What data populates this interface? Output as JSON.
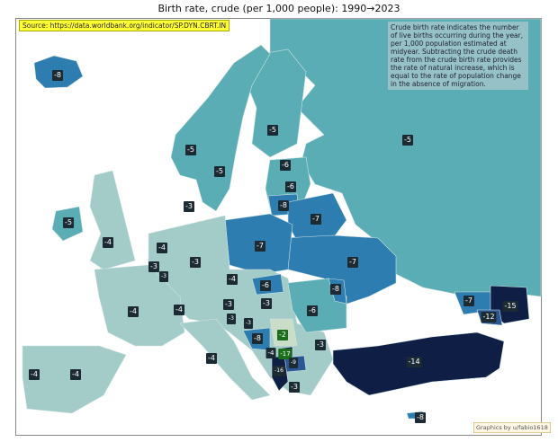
{
  "title": "Birth rate, crude (per 1,000 people):  1990→2023",
  "source": "Source: https://data.worldbank.org/indicator/SP.DYN.CBRT.IN",
  "note": "Crude birth rate indicates the number of live births occurring during the year, per 1,000 population estimated at midyear. Subtracting the crude death rate from the crude birth rate provides the rate of natural increase, which is equal to the rate of population change in the absence of migration.",
  "credit": "Graphics by u/fabio1618",
  "colors": {
    "light": "#a3cbc8",
    "teal": "#5aacb5",
    "blue": "#2e7db1",
    "darkblue": "#2a5894",
    "navy": "#0f1e45",
    "palegreen": "#c9ddc9"
  },
  "countries": {
    "iceland": "-8",
    "norway": "-5",
    "sweden": "-5",
    "finland": "-5",
    "russia": "-5",
    "estonia": "-6",
    "latvia": "-6",
    "lithuania": "-8",
    "belarus": "-7",
    "ireland": "-5",
    "uk": "-4",
    "denmark": "-3",
    "netherlands": "-4",
    "belgium": "-3",
    "luxembourg": "-3",
    "germany": "-3",
    "poland": "-7",
    "ukraine": "-7",
    "czechia": "-4",
    "slovakia": "-6",
    "moldova": "-8",
    "france": "-4",
    "switzerland": "-4",
    "austria": "-3",
    "hungary": "-3",
    "romania": "-6",
    "slovenia": "-3",
    "croatia": "-3",
    "bosnia": "-8",
    "serbia": "-2",
    "montenegro": "-4",
    "kosovo": "-17",
    "north_macedonia": "-9",
    "albania": "-16",
    "bulgaria": "-3",
    "greece": "-3",
    "italy": "-4",
    "spain": "-4",
    "portugal": "-4",
    "turkey": "-14",
    "georgia": "-7",
    "armenia": "-12",
    "azerbaijan": "-15",
    "cyprus": "-8"
  }
}
